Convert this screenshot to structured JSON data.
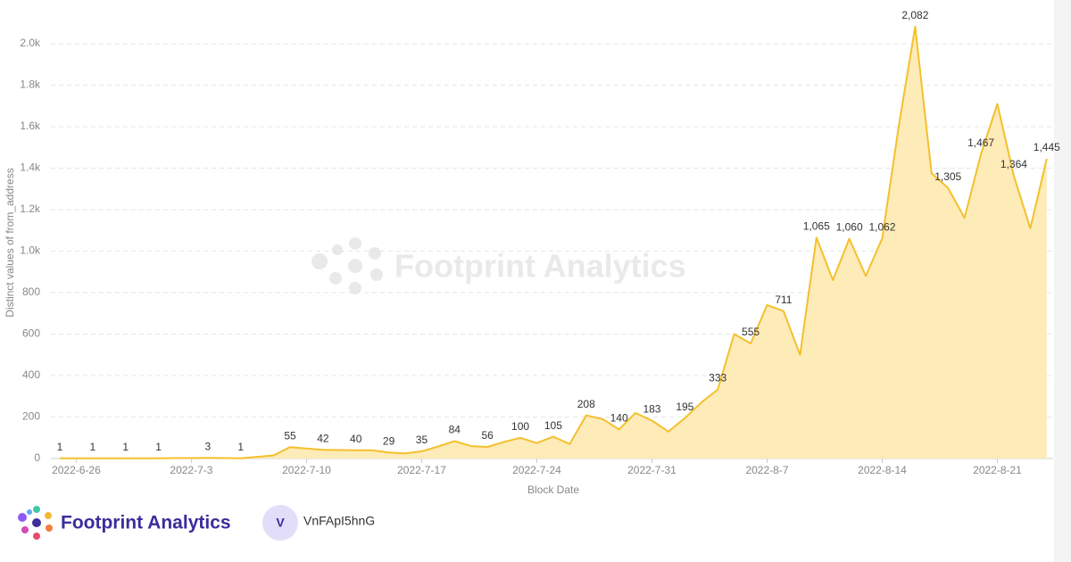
{
  "chart_data": {
    "type": "area",
    "y_label": "Distinct values of from_address",
    "x_label": "Block Date",
    "color": "#f4c02c",
    "fill_color": "#fdebb8",
    "grid": true,
    "x": [
      "2022-6-25",
      "2022-6-26",
      "2022-6-27",
      "2022-6-28",
      "2022-6-29",
      "2022-6-30",
      "2022-7-1",
      "2022-7-2",
      "2022-7-3",
      "2022-7-4",
      "2022-7-5",
      "2022-7-6",
      "2022-7-7",
      "2022-7-8",
      "2022-7-9",
      "2022-7-10",
      "2022-7-11",
      "2022-7-12",
      "2022-7-13",
      "2022-7-14",
      "2022-7-15",
      "2022-7-16",
      "2022-7-17",
      "2022-7-18",
      "2022-7-19",
      "2022-7-20",
      "2022-7-21",
      "2022-7-22",
      "2022-7-23",
      "2022-7-24",
      "2022-7-25",
      "2022-7-26",
      "2022-7-27",
      "2022-7-28",
      "2022-7-29",
      "2022-7-30",
      "2022-7-31",
      "2022-8-1",
      "2022-8-2",
      "2022-8-3",
      "2022-8-4",
      "2022-8-5",
      "2022-8-6",
      "2022-8-7",
      "2022-8-8",
      "2022-8-9",
      "2022-8-10",
      "2022-8-11",
      "2022-8-12",
      "2022-8-13",
      "2022-8-14",
      "2022-8-15",
      "2022-8-16",
      "2022-8-17",
      "2022-8-18",
      "2022-8-19",
      "2022-8-20",
      "2022-8-21",
      "2022-8-22",
      "2022-8-23",
      "2022-8-24"
    ],
    "values": [
      1,
      1,
      1,
      1,
      1,
      1,
      1,
      2,
      2,
      3,
      2,
      1,
      8,
      15,
      55,
      48,
      42,
      41,
      40,
      40,
      29,
      25,
      35,
      58,
      84,
      60,
      56,
      80,
      100,
      75,
      105,
      70,
      208,
      190,
      140,
      220,
      183,
      130,
      195,
      270,
      333,
      600,
      555,
      740,
      711,
      500,
      1065,
      860,
      1060,
      880,
      1062,
      1600,
      2082,
      1375,
      1305,
      1160,
      1467,
      1710,
      1364,
      1110,
      1445
    ],
    "value_labels": [
      "1",
      null,
      "1",
      null,
      "1",
      null,
      "1",
      null,
      null,
      "3",
      null,
      "1",
      null,
      null,
      "55",
      null,
      "42",
      null,
      "40",
      null,
      "29",
      null,
      "35",
      null,
      "84",
      null,
      "56",
      null,
      "100",
      null,
      "105",
      null,
      "208",
      null,
      "140",
      null,
      "183",
      null,
      "195",
      null,
      "333",
      null,
      "555",
      null,
      "711",
      null,
      "1,065",
      null,
      "1,060",
      null,
      "1,062",
      null,
      "2,082",
      null,
      "1,305",
      null,
      "1,467",
      null,
      "1,364",
      null,
      "1,445"
    ],
    "xticks": [
      "2022-6-26",
      "2022-7-3",
      "2022-7-10",
      "2022-7-17",
      "2022-7-24",
      "2022-7-31",
      "2022-8-7",
      "2022-8-14",
      "2022-8-21"
    ],
    "ylim": [
      0,
      2200
    ],
    "yticks": [
      0,
      200,
      400,
      600,
      800,
      {
        "value": 1000,
        "label": "1.0k"
      },
      {
        "value": 1200,
        "label": "1.2k"
      },
      {
        "value": 1400,
        "label": "1.4k"
      },
      {
        "value": 1600,
        "label": "1.6k"
      },
      {
        "value": 1800,
        "label": "1.8k"
      },
      {
        "value": 2000,
        "label": "2.0k"
      }
    ]
  },
  "watermark": "Footprint Analytics",
  "footer": {
    "brand": "Footprint Analytics",
    "avatar": "V",
    "user": "VnFApI5hnG"
  }
}
